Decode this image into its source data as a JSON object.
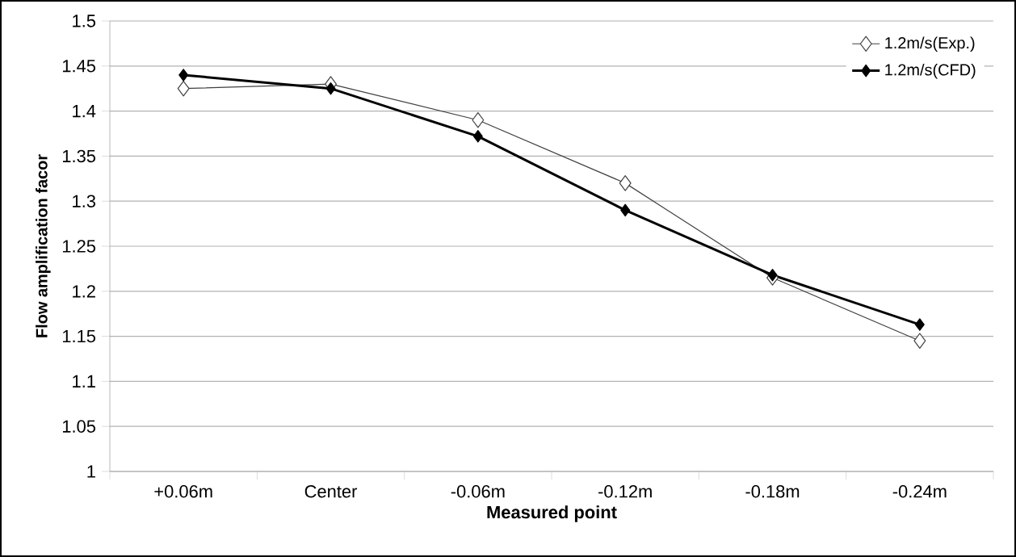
{
  "chart_data": {
    "type": "line",
    "xlabel": "Measured point",
    "ylabel": "Flow amplification facor",
    "categories": [
      "+0.06m",
      "Center",
      "-0.06m",
      "-0.12m",
      "-0.18m",
      "-0.24m"
    ],
    "series": [
      {
        "name": "1.2m/s(Exp.)",
        "color": "#404040",
        "values": [
          1.425,
          1.43,
          1.39,
          1.32,
          1.215,
          1.145
        ]
      },
      {
        "name": "1.2m/s(CFD)",
        "color": "#000000",
        "values": [
          1.44,
          1.425,
          1.372,
          1.29,
          1.218,
          1.163
        ]
      }
    ],
    "ylim": [
      1,
      1.5
    ],
    "yticks": [
      1,
      1.05,
      1.1,
      1.15,
      1.2,
      1.25,
      1.3,
      1.35,
      1.4,
      1.45,
      1.5
    ],
    "grid": "y",
    "legend": "top right",
    "marker": "diamond",
    "line_style": "solid"
  }
}
